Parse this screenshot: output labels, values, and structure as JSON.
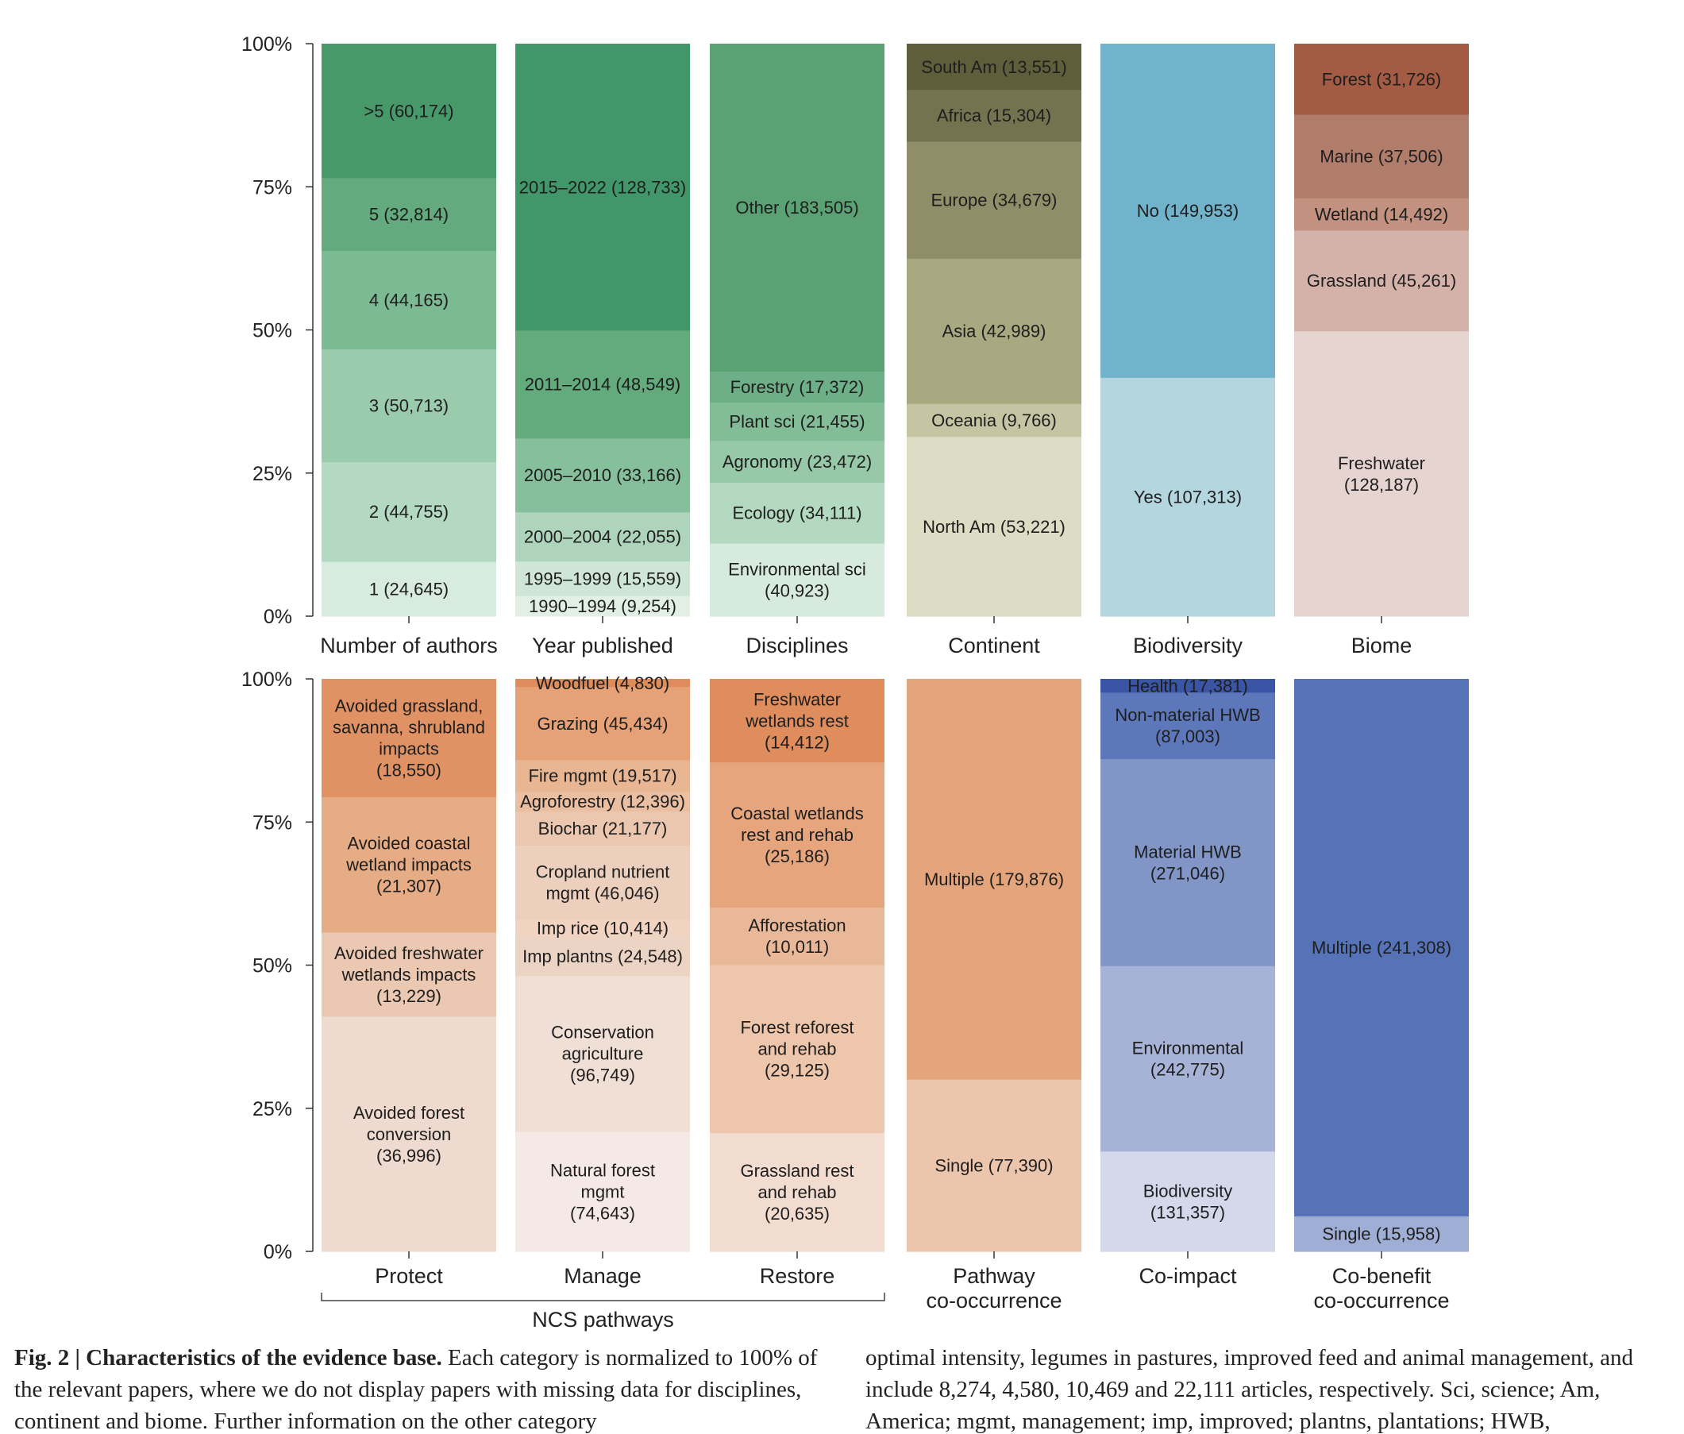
{
  "caption": {
    "fig_num": "Fig. 2 | ",
    "fig_title": "Characteristics of the evidence base.",
    "left_text": " Each category is normalized to 100% of the relevant papers, where we do not display papers with missing data for disciplines, continent and biome. Further information on the other category",
    "right_text": "optimal intensity, legumes in pastures, improved feed and animal management, and include 8,274, 4,580, 10,469 and 22,111 articles, respectively. Sci, science; Am, America; mgmt, management; imp, improved; plantns, plantations; HWB,"
  },
  "chart_data": [
    {
      "type": "bar",
      "stacked": true,
      "normalized": true,
      "ylim": [
        0,
        100
      ],
      "yticks": [
        "0%",
        "25%",
        "50%",
        "75%",
        "100%"
      ],
      "grid": false,
      "categories": [
        "Number of authors",
        "Year published",
        "Disciplines",
        "Continent",
        "Biodiversity",
        "Biome"
      ],
      "bars": [
        {
          "category": "Number of authors",
          "segments": [
            {
              "label": "1 (24,645)",
              "value": 24645,
              "color": "#d8ebdf"
            },
            {
              "label": "2 (44,755)",
              "value": 44755,
              "color": "#b4d9c2"
            },
            {
              "label": "3 (50,713)",
              "value": 50713,
              "color": "#9bcbad"
            },
            {
              "label": "4 (44,165)",
              "value": 44165,
              "color": "#7cba94"
            },
            {
              "label": "5 (32,814)",
              "value": 32814,
              "color": "#63ab7e"
            },
            {
              "label": ">5 (60,174)",
              "value": 60174,
              "color": "#47996a"
            }
          ]
        },
        {
          "category": "Year published",
          "segments": [
            {
              "label": "1990–1994 (9,254)",
              "value": 9254,
              "color": "#e1efe5"
            },
            {
              "label": "1995–1999 (15,559)",
              "value": 15559,
              "color": "#cfe6d7"
            },
            {
              "label": "2000–2004 (22,055)",
              "value": 22055,
              "color": "#aed5bc"
            },
            {
              "label": "2005–2010 (33,166)",
              "value": 33166,
              "color": "#86bf9c"
            },
            {
              "label": "2011–2014 (48,549)",
              "value": 48549,
              "color": "#63aa7c"
            },
            {
              "label": "2015–2022 (128,733)",
              "value": 128733,
              "color": "#42976a"
            }
          ]
        },
        {
          "category": "Disciplines",
          "segments": [
            {
              "label": "Environmental sci\n(40,923)",
              "value": 40923,
              "color": "#d6ebde"
            },
            {
              "label": "Ecology (34,111)",
              "value": 34111,
              "color": "#b4d9c1"
            },
            {
              "label": "Agronomy (23,472)",
              "value": 23472,
              "color": "#97c9a9"
            },
            {
              "label": "Plant sci (21,455)",
              "value": 21455,
              "color": "#82bd97"
            },
            {
              "label": "Forestry (17,372)",
              "value": 17372,
              "color": "#6db088"
            },
            {
              "label": "Other (183,505)",
              "value": 183505,
              "color": "#5aa173"
            }
          ]
        },
        {
          "category": "Continent",
          "segments": [
            {
              "label": "North Am (53,221)",
              "value": 53221,
              "color": "#dcddc4"
            },
            {
              "label": "Oceania (9,766)",
              "value": 9766,
              "color": "#c5c5a4"
            },
            {
              "label": "Asia (42,989)",
              "value": 42989,
              "color": "#a8a881"
            },
            {
              "label": "Europe (34,679)",
              "value": 34679,
              "color": "#8f8e68"
            },
            {
              "label": "Africa (15,304)",
              "value": 15304,
              "color": "#747350"
            },
            {
              "label": "South Am (13,551)",
              "value": 13551,
              "color": "#5f5e3a"
            }
          ]
        },
        {
          "category": "Biodiversity",
          "segments": [
            {
              "label": "Yes (107,313)",
              "value": 107313,
              "color": "#b3d6df"
            },
            {
              "label": "No (149,953)",
              "value": 149953,
              "color": "#71b3cb"
            }
          ]
        },
        {
          "category": "Biome",
          "segments": [
            {
              "label": "Freshwater\n(128,187)",
              "value": 128187,
              "color": "#e5d4d0"
            },
            {
              "label": "Grassland (45,261)",
              "value": 45261,
              "color": "#d4b2a9"
            },
            {
              "label": "Wetland (14,492)",
              "value": 14492,
              "color": "#c2917f"
            },
            {
              "label": "Marine (37,506)",
              "value": 37506,
              "color": "#b17d6b"
            },
            {
              "label": "Forest (31,726)",
              "value": 31726,
              "color": "#a35b43"
            }
          ]
        }
      ]
    },
    {
      "type": "bar",
      "stacked": true,
      "normalized": true,
      "ylim": [
        0,
        100
      ],
      "yticks": [
        "0%",
        "25%",
        "50%",
        "75%",
        "100%"
      ],
      "grid": false,
      "categories": [
        "Protect",
        "Manage",
        "Restore",
        "Pathway\nco-occurrence",
        "Co-impact",
        "Co-benefit\nco-occurrence"
      ],
      "group_label": "NCS pathways",
      "bars": [
        {
          "category": "Protect",
          "segments": [
            {
              "label": "Avoided forest\nconversion\n(36,996)",
              "value": 36996,
              "color": "#eedace"
            },
            {
              "label": "Avoided freshwater\nwetlands impacts\n(13,229)",
              "value": 13229,
              "color": "#ebc8b1"
            },
            {
              "label": "Avoided coastal\nwetland impacts\n(21,307)",
              "value": 21307,
              "color": "#e6ac86"
            },
            {
              "label": "Avoided grassland,\nsavanna, shrubland\nimpacts\n(18,550)",
              "value": 18550,
              "color": "#e09264"
            }
          ]
        },
        {
          "category": "Manage",
          "segments": [
            {
              "label": "Natural forest\nmgmt\n(74,643)",
              "value": 74643,
              "color": "#f4e9e4"
            },
            {
              "label": "Conservation\nagriculture\n(96,749)",
              "value": 96749,
              "color": "#f0dfd4"
            },
            {
              "label": "Imp plantns (24,548)",
              "value": 24548,
              "color": "#ecd4c4"
            },
            {
              "label": "Imp rice (10,414)",
              "value": 10414,
              "color": "#f0d3c0"
            },
            {
              "label": "Cropland nutrient\nmgmt (46,046)",
              "value": 46046,
              "color": "#ecd0bd"
            },
            {
              "label": "Biochar (21,177)",
              "value": 21177,
              "color": "#eac7ae"
            },
            {
              "label": "Agroforestry (12,396)",
              "value": 12396,
              "color": "#e9bea1"
            },
            {
              "label": "Fire mgmt (19,517)",
              "value": 19517,
              "color": "#e8b693"
            },
            {
              "label": "Grazing (45,434)",
              "value": 45434,
              "color": "#e6a276"
            },
            {
              "label": "Woodfuel (4,830)",
              "value": 4830,
              "color": "#de8c5b"
            }
          ]
        },
        {
          "category": "Restore",
          "segments": [
            {
              "label": "Grassland rest\nand rehab\n(20,635)",
              "value": 20635,
              "color": "#f1dccf"
            },
            {
              "label": "Forest reforest\nand rehab\n(29,125)",
              "value": 29125,
              "color": "#edc6ab"
            },
            {
              "label": "Afforestation\n(10,011)",
              "value": 10011,
              "color": "#e9b898"
            },
            {
              "label": "Coastal wetlands\nrest and rehab\n(25,186)",
              "value": 25186,
              "color": "#e6a57c"
            },
            {
              "label": "Freshwater\nwetlands rest\n(14,412)",
              "value": 14412,
              "color": "#e08d5e"
            }
          ]
        },
        {
          "category": "Pathway\nco-occurrence",
          "segments": [
            {
              "label": "Single (77,390)",
              "value": 77390,
              "color": "#ecc5ad"
            },
            {
              "label": "Multiple (179,876)",
              "value": 179876,
              "color": "#e5a57c"
            }
          ]
        },
        {
          "category": "Co-impact",
          "segments": [
            {
              "label": "Biodiversity\n(131,357)",
              "value": 131357,
              "color": "#d3d8ea"
            },
            {
              "label": "Environmental\n(242,775)",
              "value": 242775,
              "color": "#a6b3d6"
            },
            {
              "label": "Material HWB\n(271,046)",
              "value": 271046,
              "color": "#8195c7"
            },
            {
              "label": "Non-material HWB\n(87,003)",
              "value": 87003,
              "color": "#5d77bb"
            },
            {
              "label": "Health (17,381)",
              "value": 17381,
              "color": "#3a55a6"
            }
          ]
        },
        {
          "category": "Co-benefit\nco-occurrence",
          "segments": [
            {
              "label": "Single (15,958)",
              "value": 15958,
              "color": "#9eaed5"
            },
            {
              "label": "Multiple (241,308)",
              "value": 241308,
              "color": "#5673b8"
            }
          ]
        }
      ]
    }
  ]
}
